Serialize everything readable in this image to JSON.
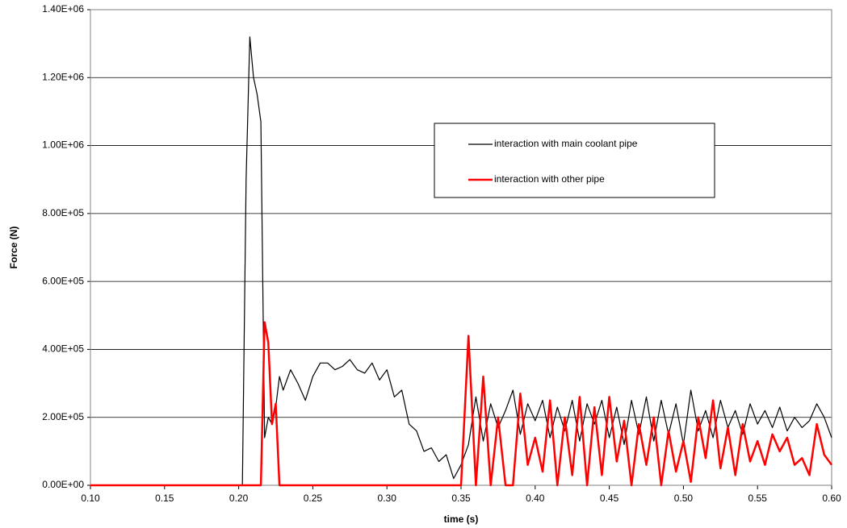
{
  "chart_data": {
    "type": "line",
    "xlabel": "time (s)",
    "ylabel": "Force (N)",
    "x": [
      0.1,
      0.2,
      0.2025,
      0.205,
      0.2075,
      0.21,
      0.2125,
      0.215,
      0.2175,
      0.22,
      0.2225,
      0.225,
      0.2275,
      0.23,
      0.235,
      0.24,
      0.245,
      0.25,
      0.255,
      0.26,
      0.265,
      0.27,
      0.275,
      0.28,
      0.285,
      0.29,
      0.295,
      0.3,
      0.305,
      0.31,
      0.315,
      0.32,
      0.325,
      0.33,
      0.335,
      0.34,
      0.345,
      0.35,
      0.355,
      0.36,
      0.365,
      0.37,
      0.375,
      0.38,
      0.385,
      0.39,
      0.395,
      0.4,
      0.405,
      0.41,
      0.415,
      0.42,
      0.425,
      0.43,
      0.435,
      0.44,
      0.445,
      0.45,
      0.455,
      0.46,
      0.465,
      0.47,
      0.475,
      0.48,
      0.485,
      0.49,
      0.495,
      0.5,
      0.505,
      0.51,
      0.515,
      0.52,
      0.525,
      0.53,
      0.535,
      0.54,
      0.545,
      0.55,
      0.555,
      0.56,
      0.565,
      0.57,
      0.575,
      0.58,
      0.585,
      0.59,
      0.595,
      0.6
    ],
    "series": [
      {
        "name": "interaction with main coolant pipe",
        "color": "#000000",
        "values": [
          0,
          0,
          0,
          900000,
          1320000,
          1200000,
          1150000,
          1070000,
          140000,
          200000,
          180000,
          230000,
          320000,
          280000,
          340000,
          300000,
          250000,
          320000,
          360000,
          360000,
          340000,
          350000,
          370000,
          340000,
          330000,
          360000,
          310000,
          340000,
          260000,
          280000,
          180000,
          160000,
          100000,
          110000,
          70000,
          90000,
          20000,
          60000,
          120000,
          260000,
          130000,
          240000,
          170000,
          220000,
          280000,
          150000,
          240000,
          190000,
          250000,
          140000,
          230000,
          160000,
          250000,
          130000,
          240000,
          180000,
          250000,
          140000,
          230000,
          120000,
          250000,
          150000,
          260000,
          130000,
          250000,
          150000,
          240000,
          120000,
          280000,
          160000,
          220000,
          140000,
          250000,
          170000,
          220000,
          150000,
          240000,
          180000,
          220000,
          170000,
          230000,
          160000,
          200000,
          170000,
          190000,
          240000,
          200000,
          140000
        ]
      },
      {
        "name": "interaction with other pipe",
        "color": "#ff0000",
        "values": [
          0,
          0,
          0,
          0,
          0,
          0,
          0,
          0,
          480000,
          420000,
          180000,
          240000,
          0,
          0,
          0,
          0,
          0,
          0,
          0,
          0,
          0,
          0,
          0,
          0,
          0,
          0,
          0,
          0,
          0,
          0,
          0,
          0,
          0,
          0,
          0,
          0,
          0,
          0,
          440000,
          0,
          320000,
          0,
          200000,
          0,
          0,
          270000,
          60000,
          140000,
          40000,
          250000,
          0,
          200000,
          30000,
          260000,
          0,
          230000,
          30000,
          260000,
          70000,
          190000,
          0,
          180000,
          60000,
          200000,
          0,
          160000,
          40000,
          130000,
          10000,
          200000,
          80000,
          250000,
          50000,
          170000,
          30000,
          180000,
          70000,
          130000,
          60000,
          150000,
          100000,
          140000,
          60000,
          80000,
          30000,
          180000,
          90000,
          60000
        ]
      }
    ],
    "xlim": [
      0.1,
      0.6
    ],
    "xticks": [
      {
        "value": 0.1,
        "label": "0.10"
      },
      {
        "value": 0.15,
        "label": "0.15"
      },
      {
        "value": 0.2,
        "label": "0.20"
      },
      {
        "value": 0.25,
        "label": "0.25"
      },
      {
        "value": 0.3,
        "label": "0.30"
      },
      {
        "value": 0.35,
        "label": "0.35"
      },
      {
        "value": 0.4,
        "label": "0.40"
      },
      {
        "value": 0.45,
        "label": "0.45"
      },
      {
        "value": 0.5,
        "label": "0.50"
      },
      {
        "value": 0.55,
        "label": "0.55"
      },
      {
        "value": 0.6,
        "label": "0.60"
      }
    ],
    "ylim": [
      0,
      1400000
    ],
    "yticks": [
      {
        "value": 0,
        "label": "0.00E+00"
      },
      {
        "value": 200000,
        "label": "2.00E+05"
      },
      {
        "value": 400000,
        "label": "4.00E+05"
      },
      {
        "value": 600000,
        "label": "6.00E+05"
      },
      {
        "value": 800000,
        "label": "8.00E+05"
      },
      {
        "value": 1000000,
        "label": "1.00E+06"
      },
      {
        "value": 1200000,
        "label": "1.20E+06"
      },
      {
        "value": 1400000,
        "label": "1.40E+06"
      }
    ],
    "grid": true
  }
}
